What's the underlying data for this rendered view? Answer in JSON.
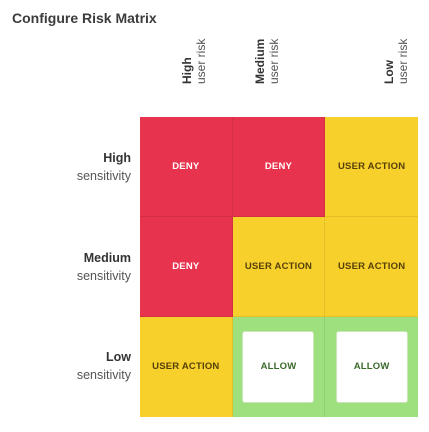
{
  "title": "Configure Risk Matrix",
  "columns": [
    {
      "level": "High",
      "label": "user risk"
    },
    {
      "level": "Medium",
      "label": "user risk"
    },
    {
      "level": "Low",
      "label": "user risk"
    }
  ],
  "rows": [
    {
      "level": "High",
      "label": "sensitivity"
    },
    {
      "level": "Medium",
      "label": "sensitivity"
    },
    {
      "level": "Low",
      "label": "sensitivity"
    }
  ],
  "cells": [
    [
      "DENY",
      "DENY",
      "USER ACTION"
    ],
    [
      "DENY",
      "USER ACTION",
      "USER ACTION"
    ],
    [
      "USER ACTION",
      "ALLOW",
      "ALLOW"
    ]
  ],
  "colors": {
    "deny": "#e8334e",
    "user_action": "#f7d02c",
    "allow": "#9fe07e"
  }
}
